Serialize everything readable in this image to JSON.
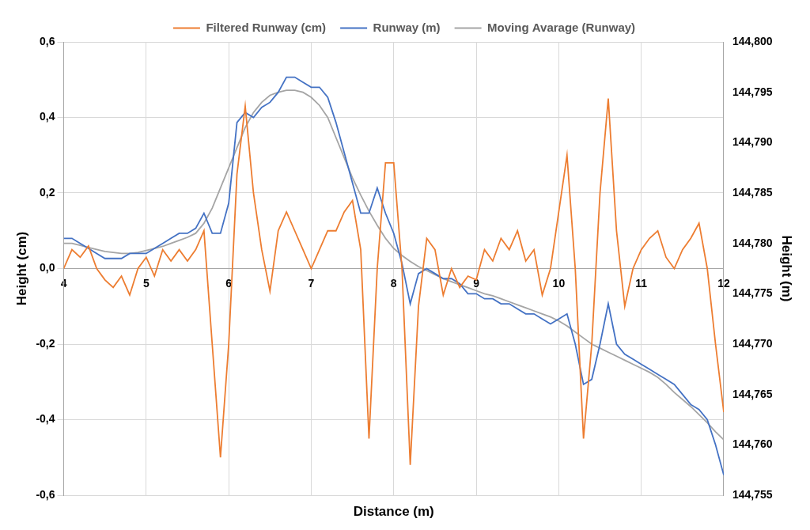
{
  "chart_data": {
    "type": "line",
    "x_label": "Distance (m)",
    "y_label": "Height (cm)",
    "y2_label": "Height (m)",
    "legend": "top",
    "grid": true,
    "x": [
      4.0,
      4.1,
      4.2,
      4.3,
      4.4,
      4.5,
      4.6,
      4.7,
      4.8,
      4.9,
      5.0,
      5.1,
      5.2,
      5.3,
      5.4,
      5.5,
      5.6,
      5.7,
      5.8,
      5.9,
      6.0,
      6.1,
      6.2,
      6.3,
      6.4,
      6.5,
      6.6,
      6.7,
      6.8,
      6.9,
      7.0,
      7.1,
      7.2,
      7.3,
      7.4,
      7.5,
      7.6,
      7.7,
      7.8,
      7.9,
      8.0,
      8.1,
      8.2,
      8.3,
      8.4,
      8.5,
      8.6,
      8.7,
      8.8,
      8.9,
      9.0,
      9.1,
      9.2,
      9.3,
      9.4,
      9.5,
      9.6,
      9.7,
      9.8,
      9.9,
      10.0,
      10.1,
      10.2,
      10.3,
      10.4,
      10.5,
      10.6,
      10.7,
      10.8,
      10.9,
      11.0,
      11.1,
      11.2,
      11.3,
      11.4,
      11.5,
      11.6,
      11.7,
      11.8,
      11.9,
      12.0
    ],
    "xlim": [
      4,
      12
    ],
    "xticks": [
      4,
      5,
      6,
      7,
      8,
      9,
      10,
      11,
      12
    ],
    "ylim": [
      -0.6,
      0.6
    ],
    "yticks": [
      {
        "value": -0.6,
        "label": "-0,6"
      },
      {
        "value": -0.4,
        "label": "-0,4"
      },
      {
        "value": -0.2,
        "label": "-0,2"
      },
      {
        "value": 0,
        "label": "0,0"
      },
      {
        "value": 0.2,
        "label": "0,2"
      },
      {
        "value": 0.4,
        "label": "0,4"
      },
      {
        "value": 0.6,
        "label": "0,6"
      }
    ],
    "y2lim": [
      144.755,
      144.8
    ],
    "y2ticks": [
      {
        "value": 144.755,
        "label": "144,755"
      },
      {
        "value": 144.76,
        "label": "144,760"
      },
      {
        "value": 144.765,
        "label": "144,765"
      },
      {
        "value": 144.77,
        "label": "144,770"
      },
      {
        "value": 144.775,
        "label": "144,775"
      },
      {
        "value": 144.78,
        "label": "144,780"
      },
      {
        "value": 144.785,
        "label": "144,785"
      },
      {
        "value": 144.79,
        "label": "144,790"
      },
      {
        "value": 144.795,
        "label": "144,795"
      },
      {
        "value": 144.8,
        "label": "144,800"
      }
    ],
    "series": [
      {
        "name": "Filtered Runway (cm)",
        "color": "#ed7d31",
        "marker": "none",
        "line_style": "solid",
        "axis": "y",
        "values": [
          0.0,
          0.05,
          0.03,
          0.06,
          0.0,
          -0.03,
          -0.05,
          -0.02,
          -0.07,
          0.0,
          0.03,
          -0.02,
          0.05,
          0.02,
          0.05,
          0.02,
          0.05,
          0.1,
          -0.2,
          -0.5,
          -0.2,
          0.25,
          0.43,
          0.2,
          0.05,
          -0.06,
          0.1,
          0.15,
          0.1,
          0.05,
          0.0,
          0.05,
          0.1,
          0.1,
          0.15,
          0.18,
          0.05,
          -0.45,
          0.0,
          0.28,
          0.28,
          0.0,
          -0.52,
          -0.1,
          0.08,
          0.05,
          -0.07,
          0.0,
          -0.05,
          -0.02,
          -0.03,
          0.05,
          0.02,
          0.08,
          0.05,
          0.1,
          0.02,
          0.05,
          -0.07,
          0.0,
          0.15,
          0.3,
          0.0,
          -0.45,
          -0.2,
          0.2,
          0.45,
          0.1,
          -0.1,
          0.0,
          0.05,
          0.08,
          0.1,
          0.03,
          0.0,
          0.05,
          0.08,
          0.12,
          0.0,
          -0.2,
          -0.38
        ]
      },
      {
        "name": "Runway (m)",
        "color": "#4472c4",
        "marker": "none",
        "line_style": "solid",
        "axis": "y2",
        "values": [
          144.7805,
          144.7805,
          144.78,
          144.7795,
          144.779,
          144.7785,
          144.7785,
          144.7785,
          144.779,
          144.779,
          144.779,
          144.7795,
          144.78,
          144.7805,
          144.781,
          144.781,
          144.7815,
          144.783,
          144.781,
          144.781,
          144.784,
          144.792,
          144.793,
          144.7925,
          144.7935,
          144.794,
          144.795,
          144.7965,
          144.7965,
          144.796,
          144.7955,
          144.7955,
          144.7945,
          144.792,
          144.789,
          144.786,
          144.783,
          144.783,
          144.7855,
          144.783,
          144.781,
          144.778,
          144.774,
          144.777,
          144.7775,
          144.777,
          144.7765,
          144.7765,
          144.776,
          144.775,
          144.775,
          144.7745,
          144.7745,
          144.774,
          144.774,
          144.7735,
          144.773,
          144.773,
          144.7725,
          144.772,
          144.7725,
          144.773,
          144.77,
          144.766,
          144.7665,
          144.77,
          144.774,
          144.77,
          144.769,
          144.7685,
          144.768,
          144.7675,
          144.767,
          144.7665,
          144.766,
          144.765,
          144.764,
          144.7635,
          144.7625,
          144.76,
          144.757
        ]
      },
      {
        "name": "Moving Avarage (Runway)",
        "color": "#a5a5a5",
        "marker": "none",
        "line_style": "solid",
        "axis": "y2",
        "values": [
          144.78,
          144.78,
          144.7798,
          144.7796,
          144.7794,
          144.7792,
          144.7791,
          144.779,
          144.779,
          144.7791,
          144.7793,
          144.7795,
          144.7797,
          144.78,
          144.7803,
          144.7806,
          144.781,
          144.782,
          144.7835,
          144.7855,
          144.7875,
          144.7895,
          144.7915,
          144.793,
          144.794,
          144.7947,
          144.795,
          144.7952,
          144.7952,
          144.795,
          144.7945,
          144.7937,
          144.7925,
          144.7905,
          144.7885,
          144.7865,
          144.7848,
          144.7832,
          144.7818,
          144.7805,
          144.7795,
          144.7788,
          144.7782,
          144.7777,
          144.7773,
          144.7769,
          144.7765,
          144.7762,
          144.7759,
          144.7756,
          144.7753,
          144.775,
          144.7748,
          144.7745,
          144.7742,
          144.7739,
          144.7736,
          144.7733,
          144.773,
          144.7727,
          144.7723,
          144.7718,
          144.7712,
          144.7706,
          144.77,
          144.7696,
          144.7692,
          144.7688,
          144.7684,
          144.768,
          144.7676,
          144.7672,
          144.7667,
          144.766,
          144.7652,
          144.7645,
          144.7638,
          144.763,
          144.7622,
          144.7613,
          144.7605
        ]
      }
    ]
  }
}
